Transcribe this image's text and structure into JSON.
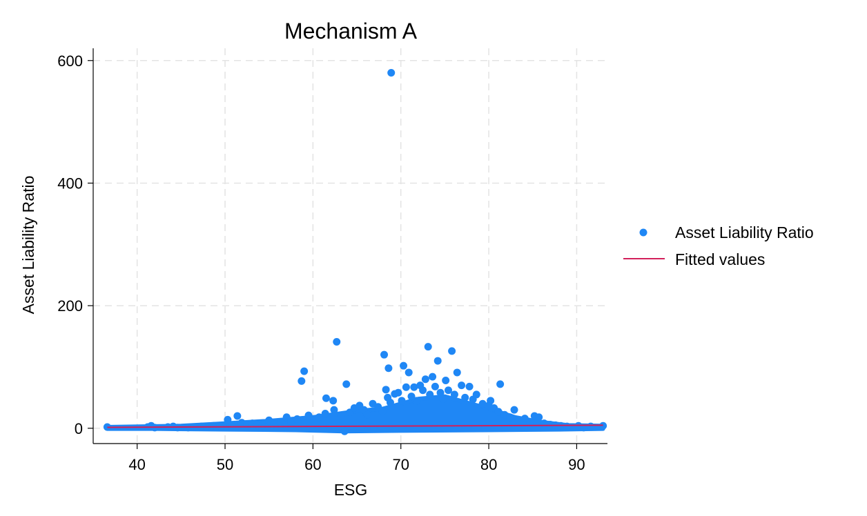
{
  "chart_data": {
    "type": "scatter",
    "title": "Mechanism A",
    "xlabel": "ESG",
    "ylabel": "Asset Liability Ratio",
    "xlim": [
      35,
      93.5
    ],
    "ylim": [
      -25,
      620
    ],
    "xticks": [
      40,
      50,
      60,
      70,
      80,
      90
    ],
    "yticks": [
      0,
      200,
      400,
      600
    ],
    "grid": true,
    "legend_position": "right",
    "colors": {
      "scatter": "#1f87f5",
      "fit": "#d21f5a",
      "grid": "#e3e3e3"
    },
    "series": [
      {
        "name": "Asset Liability Ratio",
        "kind": "scatter",
        "points": [
          [
            36.6,
            2
          ],
          [
            41.2,
            2
          ],
          [
            41.6,
            4
          ],
          [
            42.0,
            1
          ],
          [
            43.5,
            2
          ],
          [
            44.1,
            3
          ],
          [
            44.6,
            1
          ],
          [
            45.8,
            1
          ],
          [
            46.5,
            2
          ],
          [
            47.3,
            3
          ],
          [
            48.0,
            2
          ],
          [
            48.7,
            4
          ],
          [
            49.5,
            3
          ],
          [
            50.3,
            14
          ],
          [
            50.8,
            5
          ],
          [
            51.4,
            20
          ],
          [
            51.9,
            9
          ],
          [
            52.5,
            6
          ],
          [
            53.1,
            8
          ],
          [
            53.6,
            5
          ],
          [
            54.2,
            4
          ],
          [
            55.0,
            13
          ],
          [
            55.6,
            7
          ],
          [
            56.3,
            9
          ],
          [
            57.0,
            18
          ],
          [
            57.5,
            11
          ],
          [
            58.2,
            15
          ],
          [
            58.7,
            77
          ],
          [
            59.0,
            93
          ],
          [
            59.5,
            21
          ],
          [
            60.1,
            15
          ],
          [
            60.7,
            18
          ],
          [
            61.4,
            24
          ],
          [
            61.5,
            49
          ],
          [
            62.3,
            45
          ],
          [
            62.4,
            30
          ],
          [
            62.7,
            141
          ],
          [
            63.2,
            20
          ],
          [
            63.6,
            -5
          ],
          [
            63.8,
            72
          ],
          [
            64.2,
            26
          ],
          [
            64.7,
            33
          ],
          [
            65.3,
            37
          ],
          [
            65.8,
            30
          ],
          [
            66.2,
            22
          ],
          [
            66.8,
            40
          ],
          [
            67.4,
            35
          ],
          [
            67.9,
            28
          ],
          [
            68.1,
            120
          ],
          [
            68.3,
            63
          ],
          [
            68.5,
            50
          ],
          [
            68.6,
            98
          ],
          [
            68.8,
            42
          ],
          [
            68.9,
            580
          ],
          [
            69.3,
            56
          ],
          [
            69.7,
            58
          ],
          [
            70.1,
            45
          ],
          [
            70.3,
            102
          ],
          [
            70.6,
            67
          ],
          [
            70.9,
            91
          ],
          [
            71.2,
            52
          ],
          [
            71.5,
            67
          ],
          [
            71.8,
            45
          ],
          [
            72.2,
            70
          ],
          [
            72.5,
            62
          ],
          [
            72.8,
            80
          ],
          [
            73.1,
            133
          ],
          [
            73.3,
            55
          ],
          [
            73.6,
            84
          ],
          [
            73.9,
            68
          ],
          [
            74.2,
            110
          ],
          [
            74.5,
            58
          ],
          [
            74.8,
            48
          ],
          [
            75.1,
            78
          ],
          [
            75.4,
            62
          ],
          [
            75.8,
            126
          ],
          [
            76.1,
            55
          ],
          [
            76.4,
            91
          ],
          [
            76.9,
            70
          ],
          [
            77.3,
            50
          ],
          [
            77.8,
            68
          ],
          [
            78.2,
            47
          ],
          [
            78.6,
            55
          ],
          [
            79.3,
            40
          ],
          [
            80.0,
            37
          ],
          [
            80.2,
            45
          ],
          [
            80.6,
            33
          ],
          [
            81.1,
            27
          ],
          [
            81.3,
            72
          ],
          [
            81.8,
            22
          ],
          [
            82.4,
            18
          ],
          [
            82.9,
            30
          ],
          [
            83.5,
            12
          ],
          [
            84.1,
            16
          ],
          [
            84.7,
            10
          ],
          [
            85.2,
            20
          ],
          [
            85.7,
            18
          ],
          [
            86.3,
            8
          ],
          [
            87.0,
            6
          ],
          [
            87.6,
            5
          ],
          [
            88.2,
            4
          ],
          [
            88.9,
            3
          ],
          [
            89.6,
            2
          ],
          [
            90.2,
            4
          ],
          [
            90.8,
            1
          ],
          [
            91.6,
            3
          ],
          [
            93.0,
            4
          ]
        ]
      },
      {
        "name": "Fitted values",
        "kind": "line",
        "points": [
          [
            36.6,
            1.5
          ],
          [
            93.0,
            5.0
          ]
        ]
      }
    ]
  }
}
